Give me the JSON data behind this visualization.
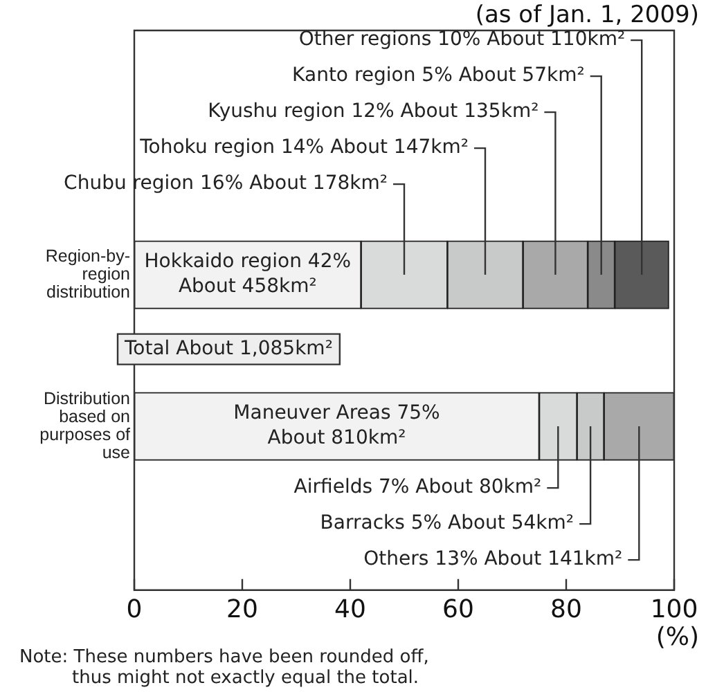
{
  "chart_data": {
    "type": "bar",
    "orientation": "horizontal",
    "stacked": true,
    "title": "(as of Jan. 1, 2009)",
    "xlabel": "(%)",
    "categories": [
      "Region-by-region distribution",
      "Distribution based on purposes of use"
    ],
    "xlim": [
      0,
      100
    ],
    "xticks": [
      0,
      20,
      40,
      60,
      80,
      100
    ],
    "grid": false,
    "annotations": [
      "Total About 1,085km²",
      "Note: These numbers have been rounded off, thus might not exactly equal the total."
    ],
    "series": [
      {
        "color": "#f2f2f2",
        "values": [
          42,
          null
        ],
        "value_labels": [
          "Hokkaido region 42%\nAbout 458km²",
          null
        ]
      },
      {
        "color": "#d9dbda",
        "values": [
          16,
          null
        ],
        "value_labels": [
          "Chubu region 16% About 178km²",
          null
        ]
      },
      {
        "color": "#c8cac9",
        "values": [
          14,
          null
        ],
        "value_labels": [
          "Tohoku region 14% About 147km²",
          null
        ]
      },
      {
        "color": "#a9a9a9",
        "values": [
          12,
          null
        ],
        "value_labels": [
          "Kyushu region 12% About 135km²",
          null
        ]
      },
      {
        "color": "#8a8a8a",
        "values": [
          5,
          null
        ],
        "value_labels": [
          "Kanto region 5% About 57km²",
          null
        ]
      },
      {
        "color": "#5a5a5a",
        "values": [
          10,
          null
        ],
        "value_labels": [
          "Other regions 10% About 110km²",
          null
        ]
      },
      {
        "color": "#f2f2f2",
        "values": [
          null,
          75
        ],
        "value_labels": [
          null,
          "Maneuver Areas 75%\nAbout 810km²"
        ]
      },
      {
        "color": "#d9dbda",
        "values": [
          null,
          7
        ],
        "value_labels": [
          null,
          "Airfields 7% About 80km²"
        ]
      },
      {
        "color": "#c8cac9",
        "values": [
          null,
          5
        ],
        "value_labels": [
          null,
          "Barracks 5% About 54km²"
        ]
      },
      {
        "color": "#a9a9a9",
        "values": [
          null,
          13
        ],
        "value_labels": [
          null,
          "Others 13% About 141km²"
        ]
      }
    ]
  }
}
